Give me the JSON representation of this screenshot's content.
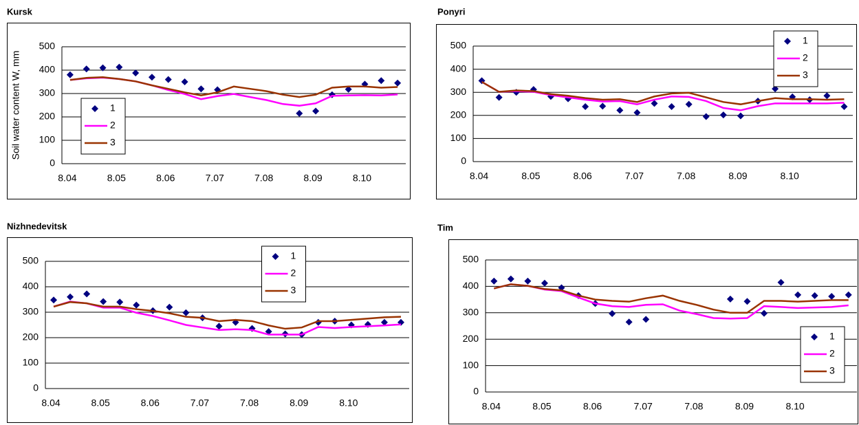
{
  "chart_data": [
    {
      "type": "line",
      "title": "Kursk",
      "y_label": "Soil water content W, mm",
      "categories": [
        "8.04",
        null,
        null,
        "8.05",
        null,
        null,
        "8.06",
        null,
        null,
        "7.07",
        null,
        null,
        "7.08",
        null,
        null,
        "8.09",
        null,
        null,
        "8.10",
        null,
        null
      ],
      "ylim": [
        0,
        500
      ],
      "yticks": [
        0,
        100,
        200,
        300,
        400,
        500
      ],
      "grid": true,
      "legend": "left",
      "series": [
        {
          "name": "1",
          "color": "#000080",
          "mode": "markers",
          "values": [
            380,
            405,
            410,
            413,
            388,
            370,
            360,
            350,
            320,
            316,
            null,
            null,
            null,
            null,
            215,
            225,
            295,
            318,
            340,
            355,
            345
          ]
        },
        {
          "name": "2",
          "color": "#ff00ff",
          "mode": "lines",
          "values": [
            358,
            365,
            368,
            362,
            352,
            335,
            315,
            298,
            276,
            289,
            298,
            285,
            272,
            255,
            248,
            258,
            290,
            292,
            293,
            292,
            296
          ]
        },
        {
          "name": "3",
          "color": "#993300",
          "mode": "lines",
          "values": [
            358,
            367,
            370,
            362,
            352,
            335,
            320,
            305,
            292,
            305,
            330,
            320,
            310,
            295,
            285,
            295,
            325,
            330,
            330,
            325,
            328
          ]
        }
      ]
    },
    {
      "type": "line",
      "title": "Ponyri",
      "categories": [
        "8.04",
        null,
        null,
        "8.05",
        null,
        null,
        "8.06",
        null,
        null,
        "7.07",
        null,
        null,
        "7.08",
        null,
        null,
        "8.09",
        null,
        null,
        "8.10",
        null,
        null,
        null
      ],
      "ylim": [
        0,
        500
      ],
      "yticks": [
        0,
        100,
        200,
        300,
        400,
        500
      ],
      "grid": true,
      "legend": "top-right",
      "series": [
        {
          "name": "1",
          "color": "#000080",
          "mode": "markers",
          "values": [
            350,
            278,
            300,
            312,
            282,
            272,
            238,
            240,
            222,
            212,
            252,
            238,
            248,
            195,
            202,
            198,
            262,
            315,
            280,
            268,
            285,
            238
          ]
        },
        {
          "name": "2",
          "color": "#ff00ff",
          "mode": "lines",
          "values": [
            345,
            302,
            305,
            302,
            288,
            278,
            268,
            260,
            262,
            248,
            268,
            282,
            280,
            262,
            232,
            222,
            240,
            252,
            252,
            252,
            252,
            255
          ]
        },
        {
          "name": "3",
          "color": "#993300",
          "mode": "lines",
          "values": [
            345,
            302,
            308,
            305,
            292,
            285,
            275,
            268,
            270,
            258,
            282,
            295,
            298,
            278,
            258,
            248,
            262,
            275,
            270,
            270,
            268,
            270
          ]
        }
      ]
    },
    {
      "type": "line",
      "title": "Nizhnedevitsk",
      "categories": [
        "8.04",
        null,
        null,
        "8.05",
        null,
        null,
        "8.06",
        null,
        null,
        "7.07",
        null,
        null,
        "7.08",
        null,
        null,
        "8.09",
        null,
        null,
        "8.10",
        null,
        null,
        null
      ],
      "ylim": [
        0,
        500
      ],
      "yticks": [
        0,
        100,
        200,
        300,
        400,
        500
      ],
      "grid": true,
      "legend": "top",
      "series": [
        {
          "name": "1",
          "color": "#000080",
          "mode": "markers",
          "values": [
            348,
            360,
            372,
            342,
            340,
            328,
            306,
            320,
            298,
            278,
            245,
            260,
            236,
            224,
            215,
            212,
            260,
            265,
            250,
            252,
            260,
            260
          ]
        },
        {
          "name": "2",
          "color": "#ff00ff",
          "mode": "lines",
          "values": [
            322,
            342,
            335,
            318,
            318,
            298,
            285,
            268,
            250,
            240,
            230,
            233,
            230,
            212,
            212,
            212,
            242,
            238,
            242,
            245,
            248,
            252
          ]
        },
        {
          "name": "3",
          "color": "#993300",
          "mode": "lines",
          "values": [
            322,
            340,
            335,
            322,
            322,
            312,
            305,
            296,
            282,
            278,
            265,
            270,
            265,
            248,
            235,
            240,
            265,
            265,
            270,
            275,
            280,
            282
          ]
        }
      ]
    },
    {
      "type": "line",
      "title": "Tim",
      "categories": [
        "8.04",
        null,
        null,
        "8.05",
        null,
        null,
        "8.06",
        null,
        null,
        "7.07",
        null,
        null,
        "7.08",
        null,
        null,
        "8.09",
        null,
        null,
        "8.10",
        null,
        null,
        null
      ],
      "ylim": [
        0,
        500
      ],
      "yticks": [
        0,
        100,
        200,
        300,
        400,
        500
      ],
      "grid": true,
      "legend": "bottom-right",
      "series": [
        {
          "name": "1",
          "color": "#000080",
          "mode": "markers",
          "values": [
            420,
            428,
            420,
            412,
            395,
            365,
            335,
            297,
            265,
            275,
            null,
            null,
            null,
            null,
            352,
            343,
            298,
            415,
            368,
            365,
            362,
            368
          ]
        },
        {
          "name": "2",
          "color": "#ff00ff",
          "mode": "lines",
          "values": [
            392,
            408,
            402,
            388,
            382,
            358,
            335,
            325,
            322,
            330,
            332,
            308,
            295,
            280,
            278,
            280,
            325,
            322,
            318,
            320,
            322,
            328
          ]
        },
        {
          "name": "3",
          "color": "#993300",
          "mode": "lines",
          "values": [
            392,
            408,
            402,
            390,
            385,
            365,
            350,
            345,
            342,
            355,
            365,
            345,
            330,
            312,
            300,
            300,
            345,
            345,
            342,
            345,
            348,
            348
          ]
        }
      ]
    }
  ]
}
